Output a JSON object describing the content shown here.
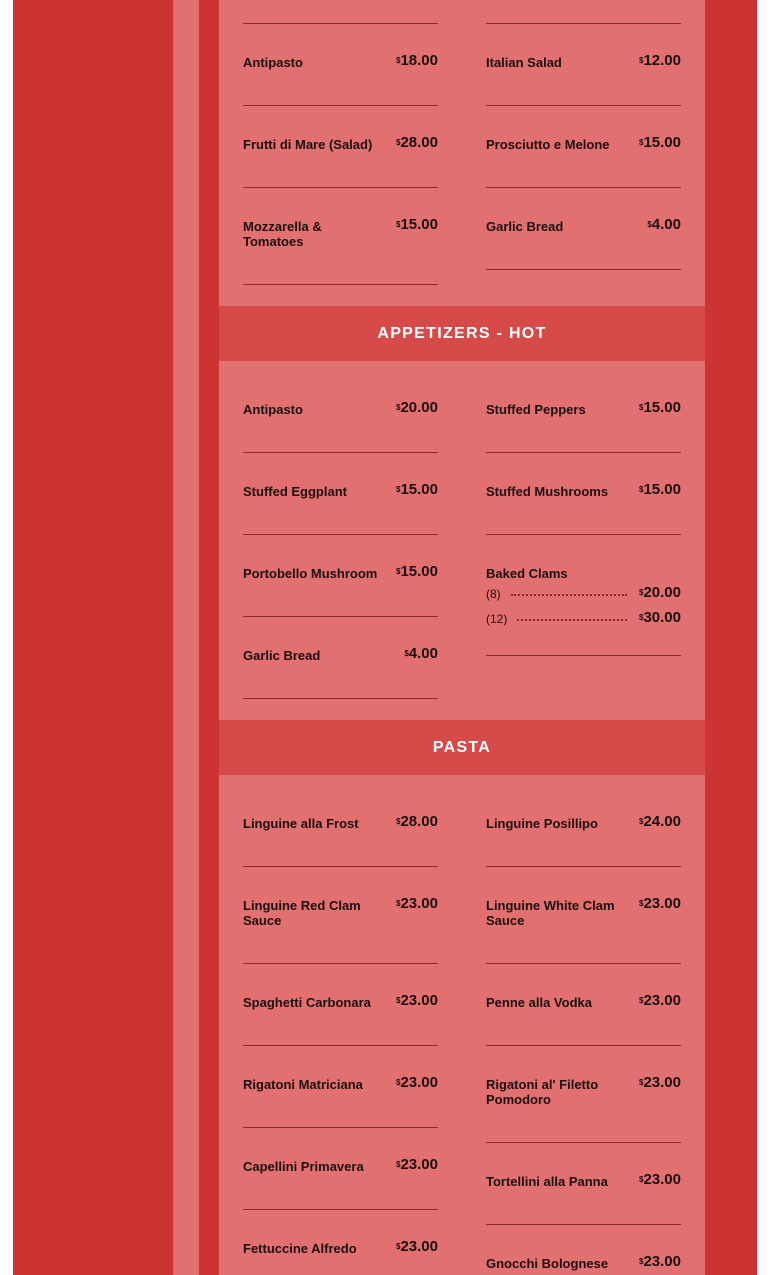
{
  "sections": [
    {
      "title": "",
      "left": [
        {
          "name": "Antipasto",
          "price": "18.00"
        },
        {
          "name": "Frutti di Mare (Salad)",
          "price": "28.00"
        },
        {
          "name": "Mozzarella & Tomatoes",
          "price": "15.00"
        }
      ],
      "right": [
        {
          "name": "Italian Salad",
          "price": "12.00"
        },
        {
          "name": "Prosciutto e Melone",
          "price": "15.00"
        },
        {
          "name": "Garlic Bread",
          "price": "4.00"
        }
      ]
    },
    {
      "title": "APPETIZERS - HOT",
      "left": [
        {
          "name": "Antipasto",
          "price": "20.00"
        },
        {
          "name": "Stuffed Eggplant",
          "price": "15.00"
        },
        {
          "name": "Portobello Mushroom",
          "price": "15.00"
        },
        {
          "name": "Garlic Bread",
          "price": "4.00"
        }
      ],
      "right": [
        {
          "name": "Stuffed Peppers",
          "price": "15.00"
        },
        {
          "name": "Stuffed Mushrooms",
          "price": "15.00"
        },
        {
          "name": "Baked Clams",
          "options": [
            {
              "qty": "(8)",
              "price": "20.00"
            },
            {
              "qty": "(12)",
              "price": "30.00"
            }
          ]
        }
      ]
    },
    {
      "title": "PASTA",
      "left": [
        {
          "name": "Linguine alla Frost",
          "price": "28.00"
        },
        {
          "name": "Linguine Red Clam Sauce",
          "price": "23.00"
        },
        {
          "name": "Spaghetti Carbonara",
          "price": "23.00"
        },
        {
          "name": "Rigatoni Matriciana",
          "price": "23.00"
        },
        {
          "name": "Capellini Primavera",
          "price": "23.00"
        },
        {
          "name": "Fettuccine Alfredo",
          "price": "23.00"
        }
      ],
      "right": [
        {
          "name": "Linguine Posillipo",
          "price": "24.00"
        },
        {
          "name": "Linguine White Clam Sauce",
          "price": "23.00"
        },
        {
          "name": "Penne alla Vodka",
          "price": "23.00"
        },
        {
          "name": "Rigatoni al' Filetto Pomodoro",
          "price": "23.00"
        },
        {
          "name": "Tortellini alla Panna",
          "price": "23.00"
        },
        {
          "name": "Gnocchi Bolognese",
          "price": "23.00"
        }
      ]
    }
  ],
  "currency": "$",
  "colors": {
    "red": "#cc3333",
    "pink": "#e27070",
    "band": "#d64a4a"
  }
}
